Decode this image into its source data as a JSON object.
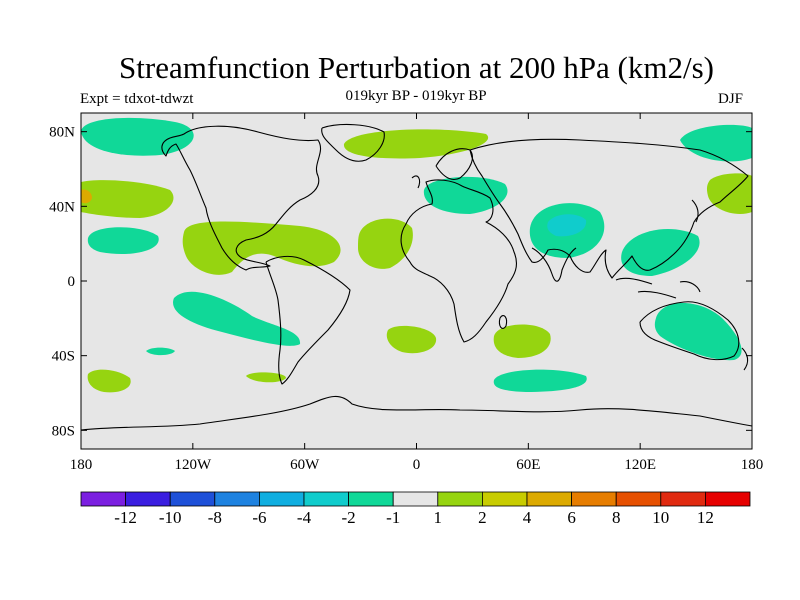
{
  "title": "Streamfunction Perturbation at 200 hPa (km2/s)",
  "left_string": "Expt = tdxot-tdwzt",
  "center_string": "019kyr BP - 019kyr BP",
  "right_string": "DJF",
  "axes": {
    "lon_ticks": [
      "180",
      "120W",
      "60W",
      "0",
      "60E",
      "120E",
      "180"
    ],
    "lat_ticks": [
      "80N",
      "40N",
      "0",
      "40S",
      "80S"
    ]
  },
  "colorbar": {
    "labels": [
      "-12",
      "-10",
      "-8",
      "-6",
      "-4",
      "-2",
      "-1",
      "1",
      "2",
      "4",
      "6",
      "8",
      "10",
      "12"
    ],
    "colors": [
      "#7b1fe0",
      "#3a1ee0",
      "#1e50d8",
      "#1e82e0",
      "#10aee0",
      "#10cccc",
      "#10d898",
      "#e6e6e6",
      "#96d410",
      "#c8cc00",
      "#dcaa00",
      "#e67d00",
      "#e65000",
      "#e02a10",
      "#e60000"
    ]
  },
  "map": {
    "background_color": "#e6e6e6",
    "land_color": "#000000"
  }
}
